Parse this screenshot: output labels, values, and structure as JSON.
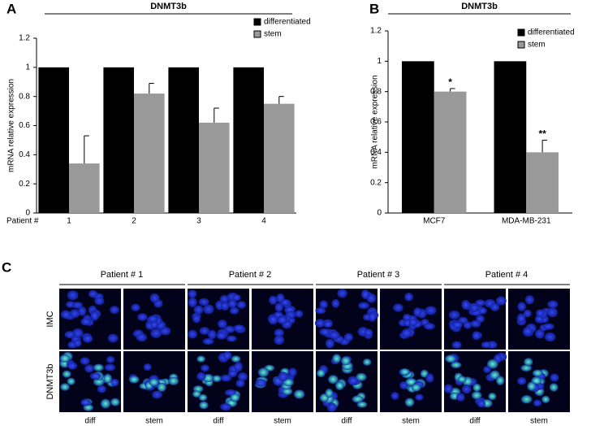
{
  "chart_data": [
    {
      "type": "bar",
      "panel_label": "A",
      "title": "DNMT3b",
      "ylabel": "mRNA relative expression",
      "xlabel": "Patient #",
      "categories": [
        "1",
        "2",
        "3",
        "4"
      ],
      "series": [
        {
          "name": "differentiated",
          "color": "#000000",
          "values": [
            1,
            1,
            1,
            1
          ]
        },
        {
          "name": "stem",
          "color": "#999999",
          "values": [
            0.34,
            0.82,
            0.62,
            0.75
          ],
          "errors": [
            0.19,
            0.07,
            0.1,
            0.05
          ]
        }
      ],
      "ylim": [
        0,
        1.2
      ],
      "yticks": [
        0,
        0.2,
        0.4,
        0.6,
        0.8,
        1,
        1.2
      ],
      "legend": "top-right"
    },
    {
      "type": "bar",
      "panel_label": "B",
      "title": "DNMT3b",
      "ylabel": "mRNA relative expression",
      "categories": [
        "MCF7",
        "MDA-MB-231"
      ],
      "series": [
        {
          "name": "differentiated",
          "color": "#000000",
          "values": [
            1,
            1
          ]
        },
        {
          "name": "stem",
          "color": "#999999",
          "values": [
            0.8,
            0.4
          ],
          "errors": [
            0.02,
            0.08
          ]
        }
      ],
      "annotations": [
        "*",
        "**"
      ],
      "ylim": [
        0,
        1.2
      ],
      "yticks": [
        0,
        0.2,
        0.4,
        0.6,
        0.8,
        1,
        1.2
      ],
      "legend": "top-right"
    }
  ],
  "panel_c": {
    "panel_label": "C",
    "patients": [
      "Patient # 1",
      "Patient # 2",
      "Patient # 3",
      "Patient # 4"
    ],
    "rows": [
      "IMC",
      "DNMT3b"
    ],
    "columns": [
      "diff",
      "stem"
    ]
  }
}
